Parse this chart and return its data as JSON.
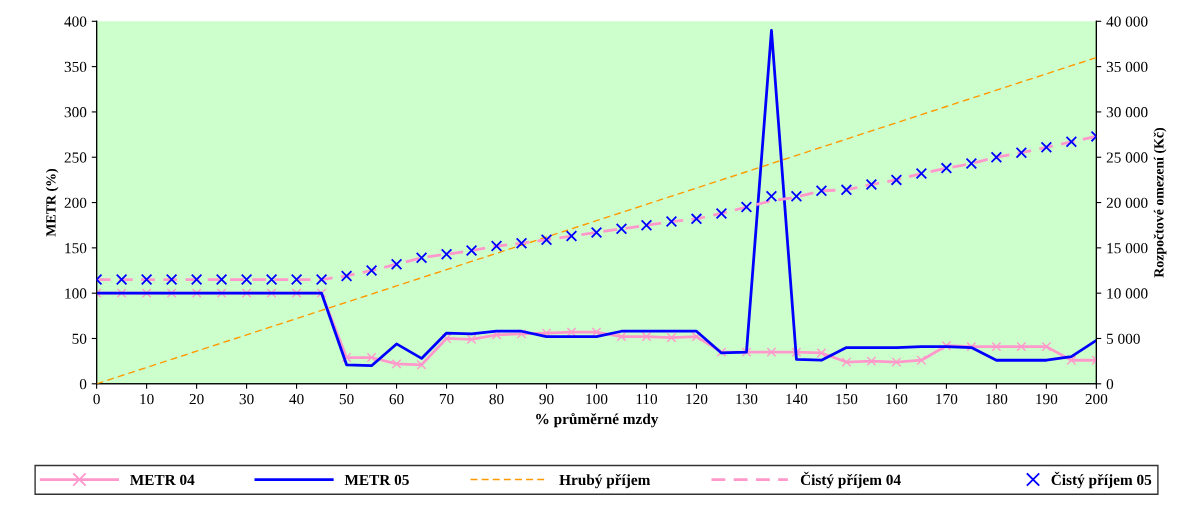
{
  "chart_data": {
    "type": "line",
    "xlabel": "% průměrné mzdy",
    "ylabel": "METR (%)",
    "y2label": "Rozpočtové omezení (Kč)",
    "x": [
      0,
      5,
      10,
      15,
      20,
      25,
      30,
      35,
      40,
      45,
      50,
      55,
      60,
      65,
      70,
      75,
      80,
      85,
      90,
      95,
      100,
      105,
      110,
      115,
      120,
      125,
      130,
      135,
      140,
      145,
      150,
      155,
      160,
      165,
      170,
      175,
      180,
      185,
      190,
      195,
      200
    ],
    "series": [
      {
        "name": "METR 04",
        "color": "#ff99cc",
        "marker": "cross",
        "line_style": "solid",
        "values": [
          100,
          100,
          100,
          100,
          100,
          100,
          100,
          100,
          100,
          100,
          29,
          29,
          22,
          21,
          50,
          49,
          54,
          55,
          56,
          57,
          57,
          52,
          52,
          51,
          52,
          35,
          35,
          35,
          35,
          34,
          24,
          25,
          24,
          26,
          42,
          41,
          41,
          41,
          41,
          26,
          26
        ]
      },
      {
        "name": "METR 05",
        "color": "#0000ff",
        "marker": "none",
        "line_style": "solid",
        "values": [
          100,
          100,
          100,
          100,
          100,
          100,
          100,
          100,
          100,
          100,
          21,
          20,
          44,
          28,
          56,
          55,
          58,
          58,
          52,
          52,
          52,
          58,
          58,
          58,
          58,
          34,
          35,
          390,
          27,
          26,
          40,
          40,
          40,
          41,
          41,
          40,
          26,
          26,
          26,
          30,
          48
        ]
      },
      {
        "name": "Hrubý příjem",
        "axis": "y2",
        "color": "#ff9900",
        "marker": "none",
        "line_style": "dashed",
        "values": [
          0,
          900,
          1800,
          2700,
          3600,
          4500,
          5400,
          6300,
          7200,
          8100,
          9000,
          9900,
          10800,
          11700,
          12600,
          13500,
          14400,
          15300,
          16200,
          17100,
          18000,
          18900,
          19800,
          20700,
          21600,
          22500,
          23400,
          24300,
          25200,
          26100,
          27000,
          27900,
          28800,
          29700,
          30600,
          31500,
          32400,
          33300,
          34200,
          35100,
          36000
        ]
      },
      {
        "name": "Čistý příjem 04",
        "axis": "y2",
        "color": "#ff99cc",
        "marker": "none",
        "line_style": "dashed",
        "values": [
          11500,
          11500,
          11500,
          11500,
          11500,
          11500,
          11500,
          11500,
          11500,
          11500,
          11900,
          12500,
          13200,
          13900,
          14300,
          14700,
          15200,
          15500,
          15900,
          16300,
          16700,
          17100,
          17500,
          17900,
          18200,
          18800,
          19500,
          20200,
          20600,
          21300,
          21400,
          22000,
          22500,
          23200,
          23800,
          24300,
          25000,
          25500,
          26100,
          26700,
          27300
        ]
      },
      {
        "name": "Čistý příjem 05",
        "type": "scatter",
        "axis": "y2",
        "color": "#0000ff",
        "marker": "cross",
        "values": [
          11500,
          11500,
          11500,
          11500,
          11500,
          11500,
          11500,
          11500,
          11500,
          11500,
          11900,
          12500,
          13200,
          13900,
          14300,
          14700,
          15200,
          15500,
          15900,
          16300,
          16700,
          17100,
          17500,
          17900,
          18200,
          18800,
          19500,
          20700,
          20700,
          21300,
          21400,
          22000,
          22500,
          23200,
          23800,
          24300,
          25000,
          25500,
          26100,
          26700,
          27300
        ]
      }
    ],
    "xlim": [
      0,
      200
    ],
    "xticks": [
      0,
      10,
      20,
      30,
      40,
      50,
      60,
      70,
      80,
      90,
      100,
      110,
      120,
      130,
      140,
      150,
      160,
      170,
      180,
      190,
      200
    ],
    "ylim": [
      0,
      400
    ],
    "yticks": [
      0,
      50,
      100,
      150,
      200,
      250,
      300,
      350,
      400
    ],
    "y2lim": [
      0,
      40000
    ],
    "y2ticks": [
      0,
      {
        "value": 5000,
        "label": "5 000"
      },
      {
        "value": 10000,
        "label": "10 000"
      },
      {
        "value": 15000,
        "label": "15 000"
      },
      {
        "value": 20000,
        "label": "20 000"
      },
      {
        "value": 25000,
        "label": "25 000"
      },
      {
        "value": 30000,
        "label": "30 000"
      },
      {
        "value": 35000,
        "label": "35 000"
      },
      {
        "value": 40000,
        "label": "40 000"
      }
    ],
    "grid": false,
    "legend": "bottom"
  }
}
